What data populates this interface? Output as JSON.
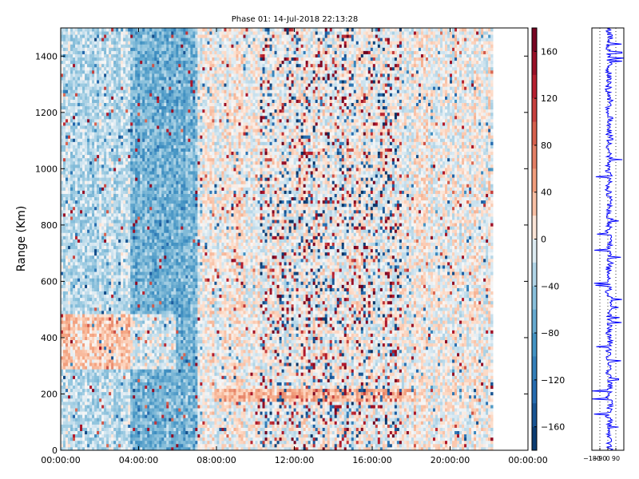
{
  "chart_data": [
    {
      "type": "heatmap",
      "title": "Phase 01: 14-Jul-2018 22:13:28",
      "ylabel": "Range (Km)",
      "xlabel": "",
      "x_ticks": [
        "00:00:00",
        "04:00:00",
        "08:00:00",
        "12:00:00",
        "16:00:00",
        "20:00:00",
        "00:00:00"
      ],
      "x_range_hours": [
        0,
        24
      ],
      "data_extent_hours": [
        0,
        22.2
      ],
      "y_ticks": [
        0,
        200,
        400,
        600,
        800,
        1000,
        1200,
        1400
      ],
      "ylim": [
        0,
        1500
      ],
      "colormap": "RdBu_r",
      "color_range": [
        -180,
        180
      ],
      "colorbar_ticks": [
        160,
        120,
        80,
        40,
        0,
        -40,
        -80,
        -120,
        -160
      ],
      "features": [
        {
          "desc": "blue vertical band",
          "x_hours": [
            3.5,
            7.0
          ],
          "value_approx": -60
        },
        {
          "desc": "warm horizontal band",
          "x_hours": [
            0,
            5.8
          ],
          "range_km": [
            280,
            480
          ],
          "value_approx": 30
        },
        {
          "desc": "warm horizontal band",
          "x_hours": [
            7.8,
            18.2
          ],
          "range_km": [
            170,
            210
          ],
          "value_approx": 35
        },
        {
          "desc": "high-variance noisy stripes",
          "x_hours": [
            10.2,
            17.5
          ],
          "value_approx": 0
        }
      ],
      "colors": {
        "low": "#053061",
        "mid": "#f7f7f7",
        "high": "#67001f"
      }
    },
    {
      "type": "line",
      "x_ticks": [
        "-180",
        "-90",
        "0",
        "90"
      ],
      "xlim": [
        -180,
        180
      ],
      "ylim": [
        0,
        1500
      ],
      "grid": true,
      "line_color": "#0000ff",
      "series_desc": "phase profile vs range"
    }
  ]
}
